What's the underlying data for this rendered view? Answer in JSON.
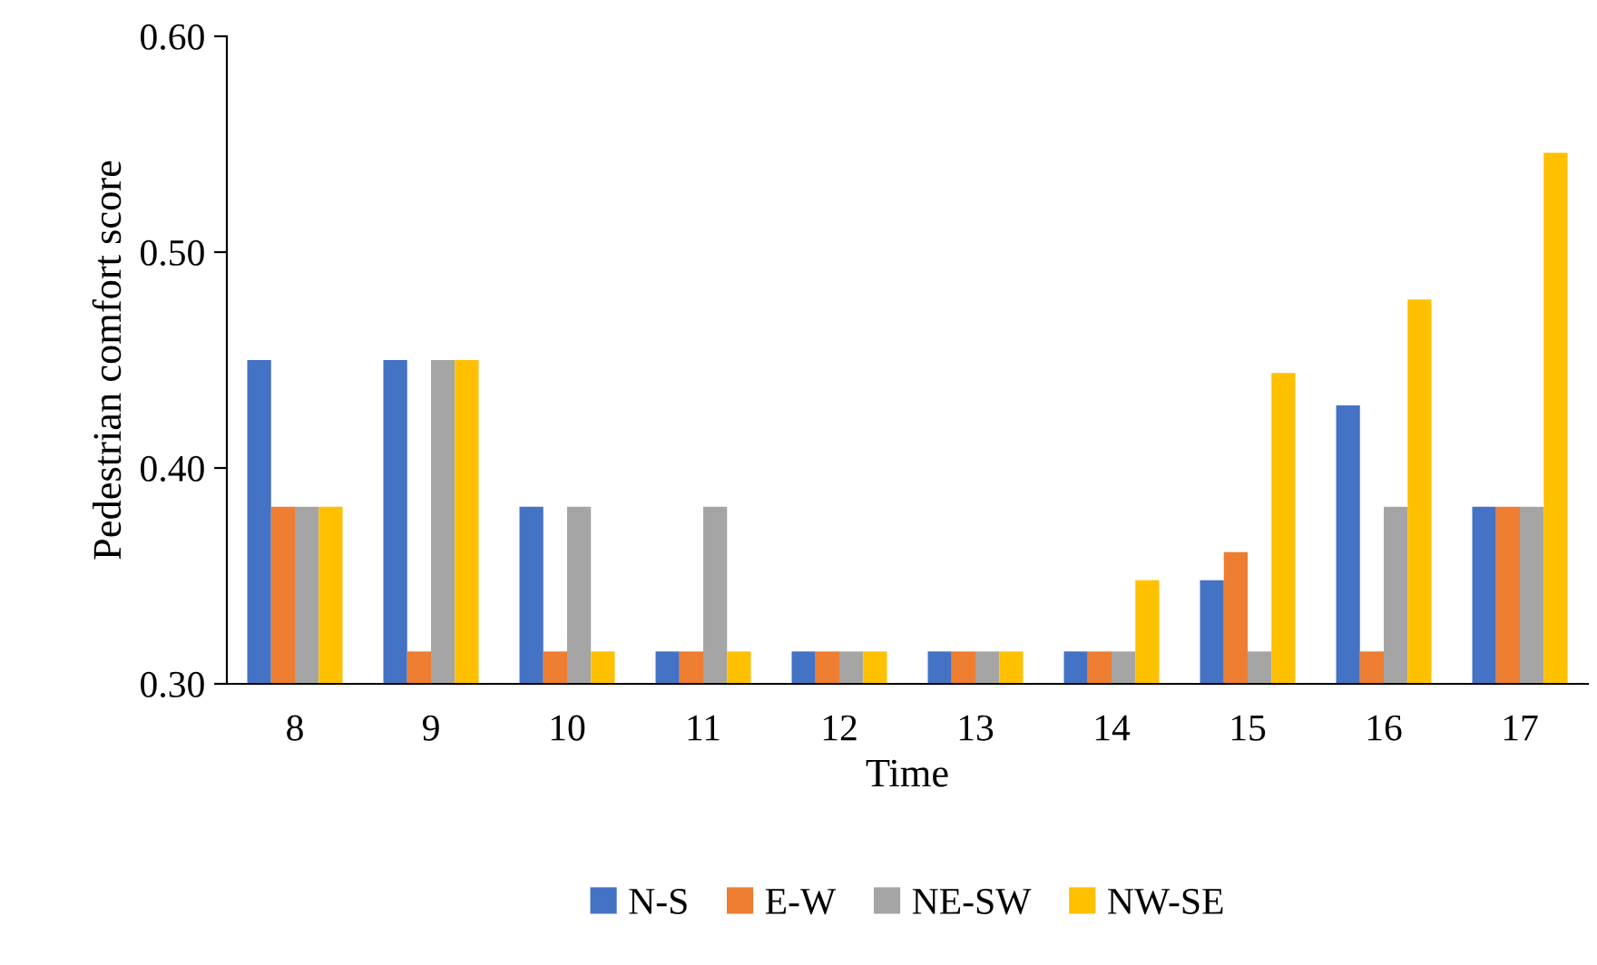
{
  "chart_data": {
    "type": "bar",
    "xlabel": "Time",
    "ylabel": "Pedestrian comfort score",
    "categories": [
      "8",
      "9",
      "10",
      "11",
      "12",
      "13",
      "14",
      "15",
      "16",
      "17"
    ],
    "series": [
      {
        "name": "N-S",
        "color": "#4472c4",
        "values": [
          0.45,
          0.45,
          0.382,
          0.315,
          0.315,
          0.315,
          0.315,
          0.348,
          0.429,
          0.382
        ]
      },
      {
        "name": "E-W",
        "color": "#ed7d31",
        "values": [
          0.382,
          0.315,
          0.315,
          0.315,
          0.315,
          0.315,
          0.315,
          0.361,
          0.315,
          0.382
        ]
      },
      {
        "name": "NE-SW",
        "color": "#a5a5a5",
        "values": [
          0.382,
          0.45,
          0.382,
          0.382,
          0.315,
          0.315,
          0.315,
          0.315,
          0.382,
          0.382
        ]
      },
      {
        "name": "NW-SE",
        "color": "#ffc000",
        "values": [
          0.382,
          0.45,
          0.315,
          0.315,
          0.315,
          0.315,
          0.348,
          0.444,
          0.478,
          0.546
        ]
      }
    ],
    "ylim": [
      0.3,
      0.6
    ],
    "yticks": [
      {
        "value": 0.3,
        "label": "0.30"
      },
      {
        "value": 0.4,
        "label": "0.40"
      },
      {
        "value": 0.5,
        "label": "0.50"
      },
      {
        "value": 0.6,
        "label": "0.60"
      }
    ],
    "grid": false,
    "legend": "bottom"
  }
}
